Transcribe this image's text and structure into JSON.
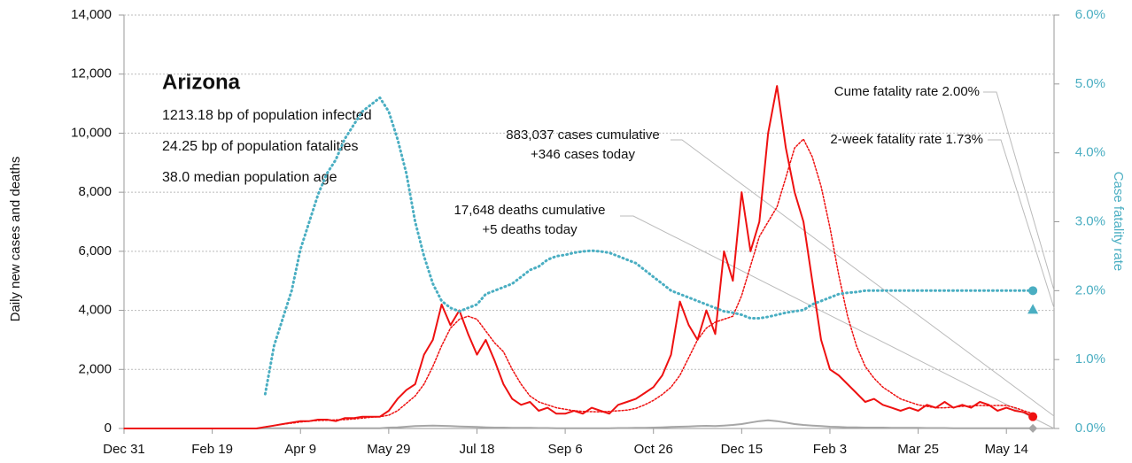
{
  "chart_data": {
    "type": "line",
    "ylabel": "Daily new cases and deaths",
    "y2label": "Case fatality rate",
    "xlim": [
      0,
      527
    ],
    "ylim": [
      0,
      14000
    ],
    "y2lim": [
      0,
      6
    ],
    "grid": true,
    "xticks": [
      {
        "value": 0,
        "label": "Dec 31"
      },
      {
        "value": 50,
        "label": "Feb 19"
      },
      {
        "value": 100,
        "label": "Apr 9"
      },
      {
        "value": 150,
        "label": "May 29"
      },
      {
        "value": 200,
        "label": "Jul 18"
      },
      {
        "value": 250,
        "label": "Sep 6"
      },
      {
        "value": 300,
        "label": "Oct 26"
      },
      {
        "value": 350,
        "label": "Dec 15"
      },
      {
        "value": 400,
        "label": "Feb 3"
      },
      {
        "value": 450,
        "label": "Mar 25"
      },
      {
        "value": 500,
        "label": "May 14"
      }
    ],
    "yticks": [
      {
        "value": 0,
        "label": "0"
      },
      {
        "value": 2000,
        "label": "2,000"
      },
      {
        "value": 4000,
        "label": "4,000"
      },
      {
        "value": 6000,
        "label": "6,000"
      },
      {
        "value": 8000,
        "label": "8,000"
      },
      {
        "value": 10000,
        "label": "10,000"
      },
      {
        "value": 12000,
        "label": "12,000"
      },
      {
        "value": 14000,
        "label": "14,000"
      }
    ],
    "y2ticks": [
      {
        "value": 0,
        "label": "0.0%"
      },
      {
        "value": 1,
        "label": "1.0%"
      },
      {
        "value": 2,
        "label": "2.0%"
      },
      {
        "value": 3,
        "label": "3.0%"
      },
      {
        "value": 4,
        "label": "4.0%"
      },
      {
        "value": 5,
        "label": "5.0%"
      },
      {
        "value": 6,
        "label": "6.0%"
      }
    ],
    "x": [
      0,
      5,
      10,
      15,
      20,
      25,
      30,
      35,
      40,
      45,
      50,
      55,
      60,
      65,
      70,
      75,
      80,
      85,
      90,
      95,
      100,
      105,
      110,
      115,
      120,
      125,
      130,
      135,
      140,
      145,
      150,
      155,
      160,
      165,
      170,
      175,
      180,
      185,
      190,
      195,
      200,
      205,
      210,
      215,
      220,
      225,
      230,
      235,
      240,
      245,
      250,
      255,
      260,
      265,
      270,
      275,
      280,
      285,
      290,
      295,
      300,
      305,
      310,
      315,
      320,
      325,
      330,
      335,
      340,
      345,
      350,
      355,
      360,
      365,
      370,
      375,
      380,
      385,
      390,
      395,
      400,
      405,
      410,
      415,
      420,
      425,
      430,
      435,
      440,
      445,
      450,
      455,
      460,
      465,
      470,
      475,
      480,
      485,
      490,
      495,
      500,
      505,
      510,
      515
    ],
    "series": [
      {
        "color": "#ee1111",
        "style": "solid",
        "values": [
          0,
          0,
          0,
          0,
          0,
          0,
          0,
          0,
          0,
          0,
          0,
          0,
          0,
          0,
          0,
          0,
          50,
          100,
          150,
          200,
          250,
          250,
          300,
          300,
          250,
          350,
          350,
          400,
          400,
          400,
          600,
          1000,
          1300,
          1500,
          2500,
          3000,
          4200,
          3500,
          4000,
          3200,
          2500,
          3000,
          2300,
          1500,
          1000,
          800,
          900,
          600,
          700,
          500,
          500,
          600,
          500,
          700,
          600,
          500,
          800,
          900,
          1000,
          1200,
          1400,
          1800,
          2500,
          4300,
          3500,
          3000,
          4000,
          3200,
          6000,
          5000,
          8000,
          6000,
          7000,
          10000,
          11600,
          9500,
          8000,
          7000,
          5000,
          3000,
          2000,
          1800,
          1500,
          1200,
          900,
          1000,
          800,
          700,
          600,
          700,
          600,
          800,
          700,
          900,
          700,
          800,
          700,
          900,
          800,
          600,
          700,
          600,
          550,
          400
        ]
      },
      {
        "color": "#ee1111",
        "style": "dotted",
        "values": [
          0,
          0,
          0,
          0,
          0,
          0,
          0,
          0,
          0,
          0,
          0,
          0,
          0,
          0,
          0,
          0,
          50,
          100,
          150,
          180,
          220,
          250,
          270,
          280,
          290,
          300,
          320,
          350,
          380,
          400,
          450,
          600,
          850,
          1100,
          1500,
          2100,
          2800,
          3400,
          3700,
          3800,
          3700,
          3300,
          2900,
          2600,
          2000,
          1500,
          1100,
          900,
          800,
          700,
          650,
          600,
          580,
          570,
          560,
          580,
          600,
          620,
          680,
          800,
          950,
          1150,
          1400,
          1800,
          2400,
          3000,
          3400,
          3600,
          3700,
          3800,
          4500,
          5500,
          6500,
          7000,
          7500,
          8500,
          9500,
          9800,
          9200,
          8200,
          6800,
          5200,
          3800,
          2800,
          2100,
          1700,
          1400,
          1200,
          1000,
          900,
          800,
          750,
          700,
          700,
          720,
          750,
          760,
          780,
          770,
          780,
          780,
          700,
          600,
          500
        ]
      },
      {
        "color": "#a6a6a6",
        "style": "solid",
        "values": [
          0,
          0,
          0,
          0,
          0,
          0,
          0,
          0,
          0,
          0,
          0,
          0,
          0,
          0,
          0,
          0,
          10,
          10,
          10,
          10,
          10,
          10,
          10,
          10,
          10,
          10,
          10,
          10,
          10,
          10,
          30,
          40,
          60,
          80,
          90,
          100,
          90,
          80,
          70,
          60,
          50,
          40,
          30,
          30,
          20,
          20,
          20,
          15,
          15,
          10,
          10,
          10,
          10,
          10,
          10,
          10,
          15,
          15,
          20,
          25,
          30,
          40,
          50,
          60,
          70,
          80,
          90,
          80,
          100,
          120,
          150,
          200,
          250,
          280,
          250,
          200,
          150,
          120,
          100,
          80,
          60,
          50,
          40,
          40,
          30,
          30,
          30,
          25,
          20,
          20,
          20,
          15,
          15,
          15,
          10,
          10,
          10,
          10,
          10,
          10,
          10,
          10,
          10,
          5
        ]
      },
      {
        "color": "#4aaec2",
        "style": "dotted",
        "axis": "y2",
        "values": [
          null,
          null,
          null,
          null,
          null,
          null,
          null,
          null,
          null,
          null,
          null,
          null,
          null,
          null,
          null,
          null,
          0.5,
          1.2,
          1.6,
          2.0,
          2.6,
          3.0,
          3.4,
          3.7,
          3.9,
          4.2,
          4.4,
          4.6,
          4.7,
          4.8,
          4.6,
          4.2,
          3.7,
          3.0,
          2.5,
          2.1,
          1.85,
          1.75,
          1.7,
          1.75,
          1.8,
          1.95,
          2.0,
          2.05,
          2.1,
          2.2,
          2.3,
          2.35,
          2.45,
          2.5,
          2.52,
          2.55,
          2.57,
          2.58,
          2.57,
          2.55,
          2.5,
          2.45,
          2.4,
          2.3,
          2.2,
          2.1,
          2.0,
          1.95,
          1.9,
          1.85,
          1.8,
          1.75,
          1.7,
          1.68,
          1.65,
          1.6,
          1.6,
          1.62,
          1.65,
          1.68,
          1.7,
          1.72,
          1.8,
          1.85,
          1.9,
          1.95,
          1.97,
          1.98,
          2.0,
          2.0,
          2.0,
          2.0,
          2.0,
          2.0,
          2.0,
          2.0,
          2.0,
          2.0,
          2.0,
          2.0,
          2.0,
          2.0,
          2.0,
          2.0,
          2.0,
          2.0,
          2.0,
          2.0
        ]
      }
    ],
    "end_markers": {
      "cume_fatality_rate": 2.0,
      "two_week_fatality_rate": 1.73
    },
    "info": {
      "title": "Arizona",
      "lines": [
        "1213.18 bp of population infected",
        "24.25 bp of population fatalities",
        "38.0 median population age"
      ]
    },
    "annotations": {
      "cume": "Cume fatality rate 2.00%",
      "two_week": "2-week fatality rate 1.73%",
      "cases": [
        "883,037 cases cumulative",
        "+346 cases today"
      ],
      "deaths": [
        "17,648 deaths cumulative",
        "+5 deaths today"
      ]
    }
  }
}
